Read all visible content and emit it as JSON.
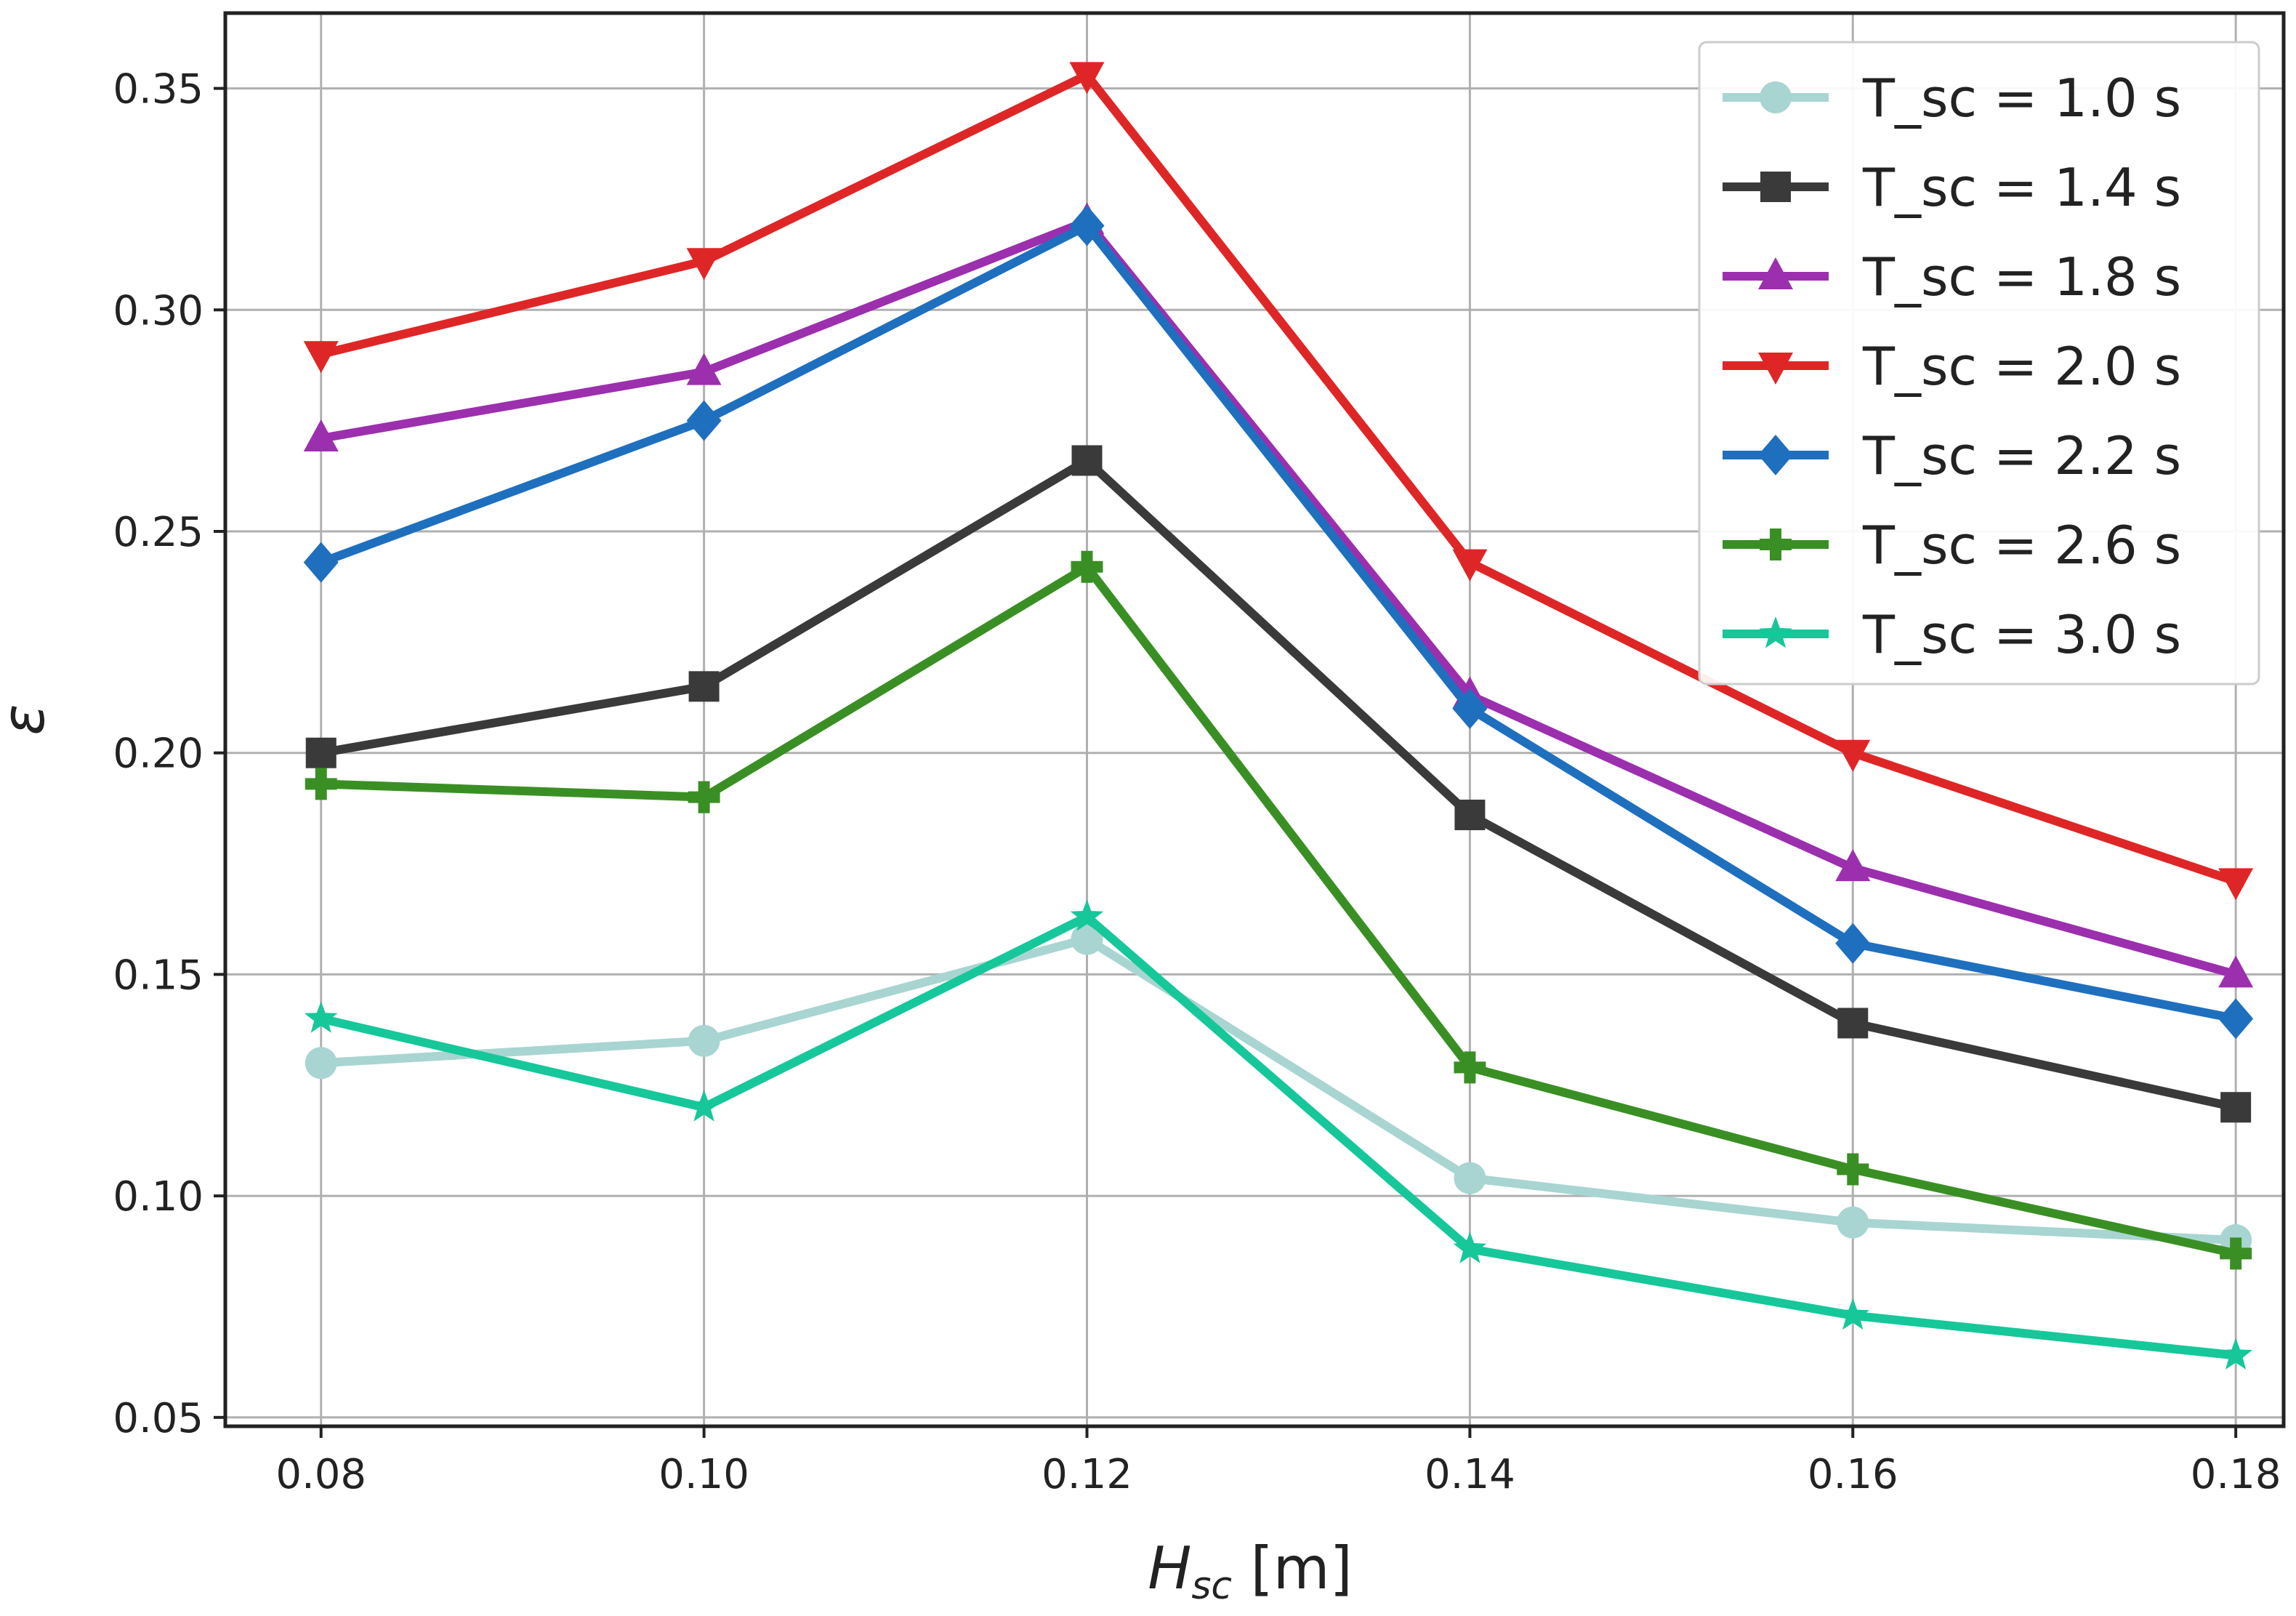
{
  "chart_data": {
    "type": "line",
    "title": "",
    "xlabel": {
      "main": "H",
      "sub": "sc",
      "unit": " [m]"
    },
    "ylabel": "ε",
    "x": [
      0.08,
      0.1,
      0.12,
      0.14,
      0.16,
      0.18
    ],
    "x_tick_labels": [
      "0.08",
      "0.10",
      "0.12",
      "0.14",
      "0.16",
      "0.18"
    ],
    "y_ticks": [
      0.05,
      0.1,
      0.15,
      0.2,
      0.25,
      0.3,
      0.35
    ],
    "y_tick_labels": [
      "0.05",
      "0.10",
      "0.15",
      "0.20",
      "0.25",
      "0.30",
      "0.35"
    ],
    "xlim": [
      0.075,
      0.1825
    ],
    "ylim": [
      0.048,
      0.367
    ],
    "grid": true,
    "legend_position": "top-right",
    "series": [
      {
        "name": "T_sc = 1.0 s",
        "color": "#a8d5d1",
        "marker": "circle",
        "values": [
          0.13,
          0.135,
          0.158,
          0.104,
          0.094,
          0.09
        ]
      },
      {
        "name": "T_sc = 1.4 s",
        "color": "#3a3a3a",
        "marker": "square",
        "values": [
          0.2,
          0.215,
          0.266,
          0.186,
          0.139,
          0.12
        ]
      },
      {
        "name": "T_sc = 1.8 s",
        "color": "#9c2fae",
        "marker": "triangle-up",
        "values": [
          0.271,
          0.286,
          0.32,
          0.213,
          0.174,
          0.15
        ]
      },
      {
        "name": "T_sc = 2.0 s",
        "color": "#df2626",
        "marker": "triangle-down",
        "values": [
          0.29,
          0.311,
          0.353,
          0.243,
          0.2,
          0.171
        ]
      },
      {
        "name": "T_sc = 2.2 s",
        "color": "#1f6fbf",
        "marker": "diamond",
        "values": [
          0.243,
          0.275,
          0.319,
          0.21,
          0.157,
          0.14
        ]
      },
      {
        "name": "T_sc = 2.6 s",
        "color": "#3a8f24",
        "marker": "plus",
        "values": [
          0.193,
          0.19,
          0.242,
          0.129,
          0.106,
          0.087
        ]
      },
      {
        "name": "T_sc = 3.0 s",
        "color": "#16c79a",
        "marker": "star",
        "values": [
          0.14,
          0.12,
          0.163,
          0.088,
          0.073,
          0.064
        ]
      }
    ]
  }
}
